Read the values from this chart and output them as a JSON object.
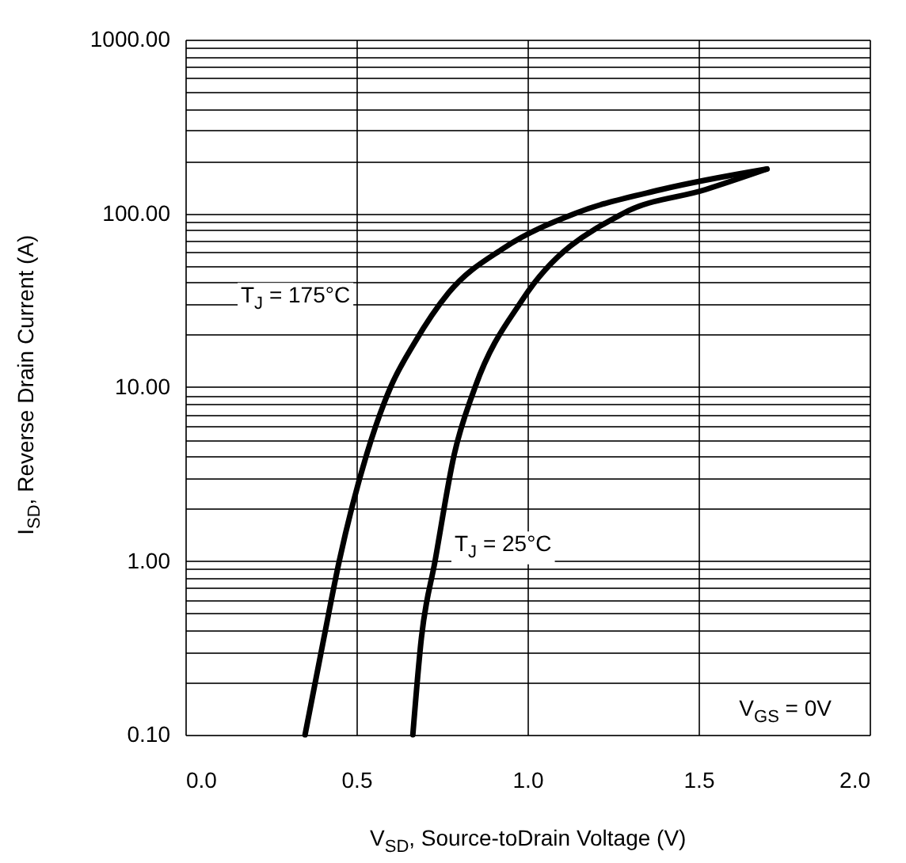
{
  "chart_data": {
    "type": "line",
    "xlabel": "V$_{SD}$, Source-toDrain Voltage (V)",
    "ylabel": "I$_{SD}$, Reverse Drain Current (A)",
    "series": [
      {
        "color": "#000000",
        "x": [
          0.35,
          0.405,
          0.45,
          0.53,
          0.6,
          0.67,
          0.77,
          0.93,
          1.14,
          1.39,
          1.7
        ],
        "values": [
          0.1,
          0.36,
          1,
          4.1,
          10,
          18,
          35,
          63,
          100,
          137,
          180
        ]
      },
      {
        "color": "#000000",
        "x": [
          0.665,
          0.69,
          0.73,
          0.786,
          0.847,
          0.986,
          1.28,
          1.52,
          1.7
        ],
        "values": [
          0.1,
          0.36,
          1,
          4.1,
          10,
          32,
          100,
          137,
          180
        ]
      }
    ],
    "xlim": [
      0,
      2
    ],
    "xticks": [
      {
        "value": 0,
        "label": "0.0"
      },
      {
        "value": 0.5,
        "label": "0.5"
      },
      {
        "value": 1,
        "label": "1.0"
      },
      {
        "value": 1.5,
        "label": "1.5"
      },
      {
        "value": 2,
        "label": "2.0"
      }
    ],
    "ylim": [
      0.1,
      1000
    ],
    "yticks": [
      {
        "value": 0.1,
        "label": "0.10"
      },
      {
        "value": 0.2,
        "label": null
      },
      {
        "value": 0.3,
        "label": null
      },
      {
        "value": 0.4,
        "label": null
      },
      {
        "value": 0.5,
        "label": null
      },
      {
        "value": 0.6,
        "label": null
      },
      {
        "value": 0.7,
        "label": null
      },
      {
        "value": 0.8,
        "label": null
      },
      {
        "value": 0.9,
        "label": null
      },
      {
        "value": 1,
        "label": "1.00"
      },
      {
        "value": 2,
        "label": null
      },
      {
        "value": 3,
        "label": null
      },
      {
        "value": 4,
        "label": null
      },
      {
        "value": 5,
        "label": null
      },
      {
        "value": 6,
        "label": null
      },
      {
        "value": 7,
        "label": null
      },
      {
        "value": 8,
        "label": null
      },
      {
        "value": 9,
        "label": null
      },
      {
        "value": 10,
        "label": "10.00"
      },
      {
        "value": 20,
        "label": null
      },
      {
        "value": 30,
        "label": null
      },
      {
        "value": 40,
        "label": null
      },
      {
        "value": 50,
        "label": null
      },
      {
        "value": 60,
        "label": null
      },
      {
        "value": 70,
        "label": null
      },
      {
        "value": 80,
        "label": null
      },
      {
        "value": 90,
        "label": null
      },
      {
        "value": 100,
        "label": "100.00"
      },
      {
        "value": 200,
        "label": null
      },
      {
        "value": 300,
        "label": null
      },
      {
        "value": 400,
        "label": null
      },
      {
        "value": 500,
        "label": null
      },
      {
        "value": 600,
        "label": null
      },
      {
        "value": 700,
        "label": null
      },
      {
        "value": 800,
        "label": null
      },
      {
        "value": 900,
        "label": null
      },
      {
        "value": 1000,
        "label": "1000.00"
      }
    ],
    "log": "y",
    "grid": true,
    "legend": false,
    "line_style": "solid",
    "marker": "none",
    "annotations": [
      "T$_{J}$ = 175°C",
      "T$_{J}$ = 25°C",
      "V$_{GS}$ = 0V"
    ]
  }
}
